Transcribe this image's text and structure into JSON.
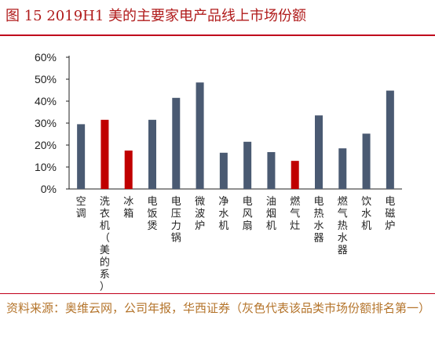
{
  "title": "图 15   2019H1 美的主要家电产品线上市场份额",
  "source": "资料来源：奥维云网，公司年报，华西证券（灰色代表该品类市场份额排名第一）",
  "colors": {
    "gray": "#4a5a72",
    "red": "#c00000",
    "title": "#b01b1b",
    "source": "#b4742b"
  },
  "chart_data": {
    "type": "bar",
    "title": "",
    "xlabel": "",
    "ylabel": "",
    "ylim": [
      0,
      60
    ],
    "yticks": [
      "0%",
      "10%",
      "20%",
      "30%",
      "40%",
      "50%",
      "60%"
    ],
    "categories": [
      "空调",
      "洗衣机（美的系）",
      "冰箱",
      "电饭煲",
      "电压力锅",
      "微波炉",
      "净水机",
      "电风扇",
      "油烟机",
      "燃气灶",
      "电热水器",
      "燃气热水器",
      "饮水机",
      "电磁炉"
    ],
    "values": [
      29.5,
      31.5,
      17.5,
      31.5,
      41.5,
      48.5,
      16.5,
      21.5,
      16.8,
      12.8,
      33.5,
      18.5,
      25.2,
      44.8
    ],
    "bar_colors": [
      "gray",
      "red",
      "red",
      "gray",
      "gray",
      "gray",
      "gray",
      "gray",
      "gray",
      "red",
      "gray",
      "gray",
      "gray",
      "gray"
    ]
  }
}
